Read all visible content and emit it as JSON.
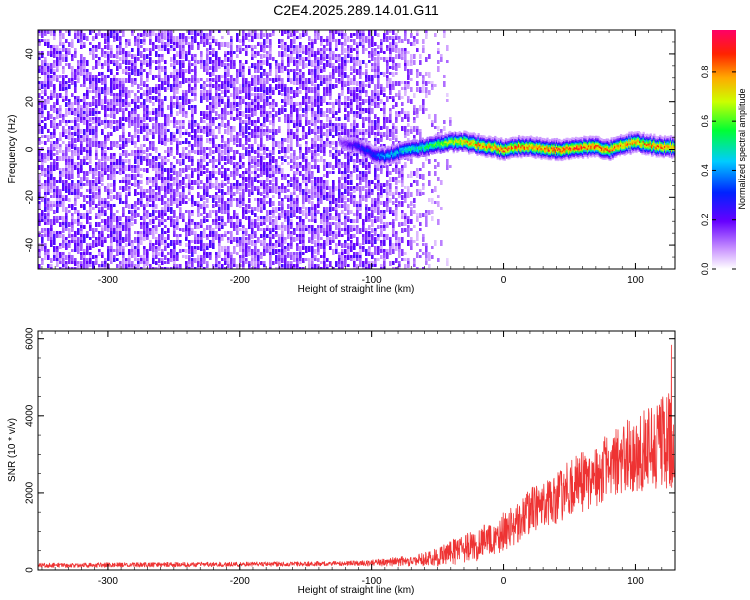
{
  "chart_data": [
    {
      "type": "heatmap",
      "title": "C2E4.2025.289.14.01.G11",
      "xlabel": "Height of straight line (km)",
      "ylabel": "Frequency (Hz)",
      "xlim": [
        -353,
        130
      ],
      "ylim": [
        -50,
        50
      ],
      "xticks": [
        -300,
        -200,
        -100,
        0,
        100
      ],
      "yticks": [
        -40,
        -20,
        0,
        20,
        40
      ],
      "colorbar": {
        "label": "Normalized spectral amplitude",
        "range": [
          0,
          0.97
        ],
        "ticks": [
          0,
          0.2,
          0.4,
          0.6,
          0.8
        ]
      },
      "noise_band": {
        "x_from": -353,
        "x_to": -40,
        "x_cutoff_dense": -95,
        "amplitude_max": 0.15
      },
      "signal_trace": {
        "x": [
          -125,
          -110,
          -100,
          -90,
          -80,
          -70,
          -60,
          -50,
          -40,
          -30,
          -20,
          -10,
          0,
          10,
          20,
          30,
          40,
          50,
          60,
          70,
          80,
          90,
          100,
          110,
          120,
          128
        ],
        "frequency": [
          3,
          1,
          -2,
          -3,
          -1,
          0,
          1,
          2,
          3,
          3,
          2,
          1,
          0,
          1,
          1,
          0,
          0,
          0,
          1,
          1,
          0,
          2,
          3,
          2,
          1,
          1
        ],
        "amplitude": [
          0.15,
          0.3,
          0.35,
          0.45,
          0.5,
          0.55,
          0.6,
          0.65,
          0.75,
          0.85,
          0.9,
          0.92,
          0.95,
          0.93,
          0.9,
          0.92,
          0.95,
          0.96,
          0.95,
          0.93,
          0.94,
          0.9,
          0.88,
          0.9,
          0.92,
          0.9
        ]
      }
    },
    {
      "type": "line",
      "title": "",
      "xlabel": "Height of straight line (km)",
      "ylabel": "SNR (10 * v/v)",
      "xlim": [
        -353,
        130
      ],
      "ylim": [
        0,
        6200
      ],
      "xticks": [
        -300,
        -200,
        -100,
        0,
        100
      ],
      "yticks": [
        0,
        2000,
        4000,
        6000
      ],
      "series": [
        {
          "name": "SNR",
          "color": "#ee3333",
          "x": [
            -353,
            -300,
            -250,
            -200,
            -150,
            -120,
            -100,
            -80,
            -60,
            -50,
            -40,
            -30,
            -20,
            -10,
            0,
            10,
            20,
            30,
            40,
            50,
            60,
            70,
            80,
            90,
            100,
            110,
            120,
            130
          ],
          "baseline": [
            120,
            130,
            140,
            150,
            160,
            170,
            180,
            220,
            280,
            350,
            450,
            550,
            650,
            800,
            1000,
            1200,
            1500,
            1700,
            1900,
            2100,
            2300,
            2500,
            2700,
            2900,
            3000,
            3100,
            3300,
            3400
          ],
          "spread": [
            60,
            60,
            60,
            60,
            60,
            60,
            80,
            120,
            180,
            250,
            320,
            380,
            420,
            480,
            500,
            550,
            600,
            650,
            700,
            750,
            800,
            850,
            900,
            950,
            1000,
            1100,
            1200,
            1250
          ],
          "peak": 6200
        }
      ]
    }
  ]
}
